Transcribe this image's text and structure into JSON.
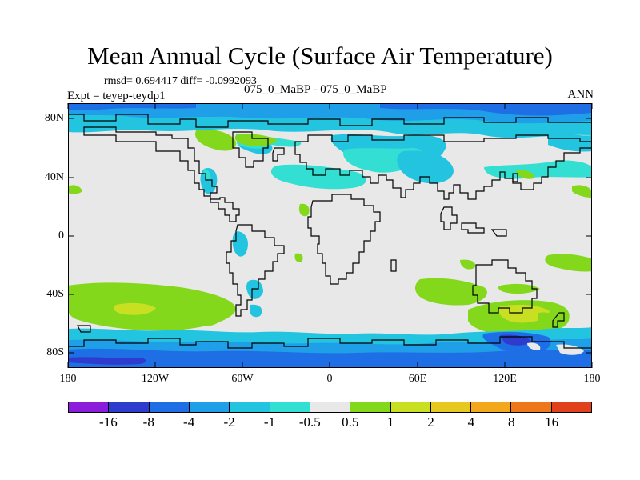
{
  "title": "Mean Annual Cycle (Surface Air Temperature)",
  "stats": "rmsd= 0.694417 diff= -0.0992093",
  "expt": "Expt = teyep-teydp1",
  "experiment_name": "075_0_MaBP - 075_0_MaBP",
  "season": "ANN",
  "y_ticks": [
    "80N",
    "40N",
    "0",
    "40S",
    "80S"
  ],
  "x_ticks": [
    "180",
    "120W",
    "60W",
    "0",
    "60E",
    "120E",
    "180"
  ],
  "colorbar": {
    "colors": [
      "#8c1cdc",
      "#2d3ccd",
      "#1e6fe6",
      "#1f9fe8",
      "#22c4e0",
      "#33dfd2",
      "#e8e8e8",
      "#84d81c",
      "#c8e021",
      "#e6c81e",
      "#f2a81a",
      "#ee7819",
      "#e0401a"
    ],
    "labels": [
      "-16",
      "-8",
      "-4",
      "-2",
      "-1",
      "-0.5",
      "0.5",
      "1",
      "2",
      "4",
      "8",
      "16"
    ]
  },
  "map_colors": {
    "neutral": "#e8e8e8",
    "cyan": "#22c4e0",
    "aqua": "#33dfd2",
    "blue": "#1f9fe8",
    "dblue": "#1e6fe6",
    "green": "#84d81c",
    "yellow": "#c8e021"
  }
}
